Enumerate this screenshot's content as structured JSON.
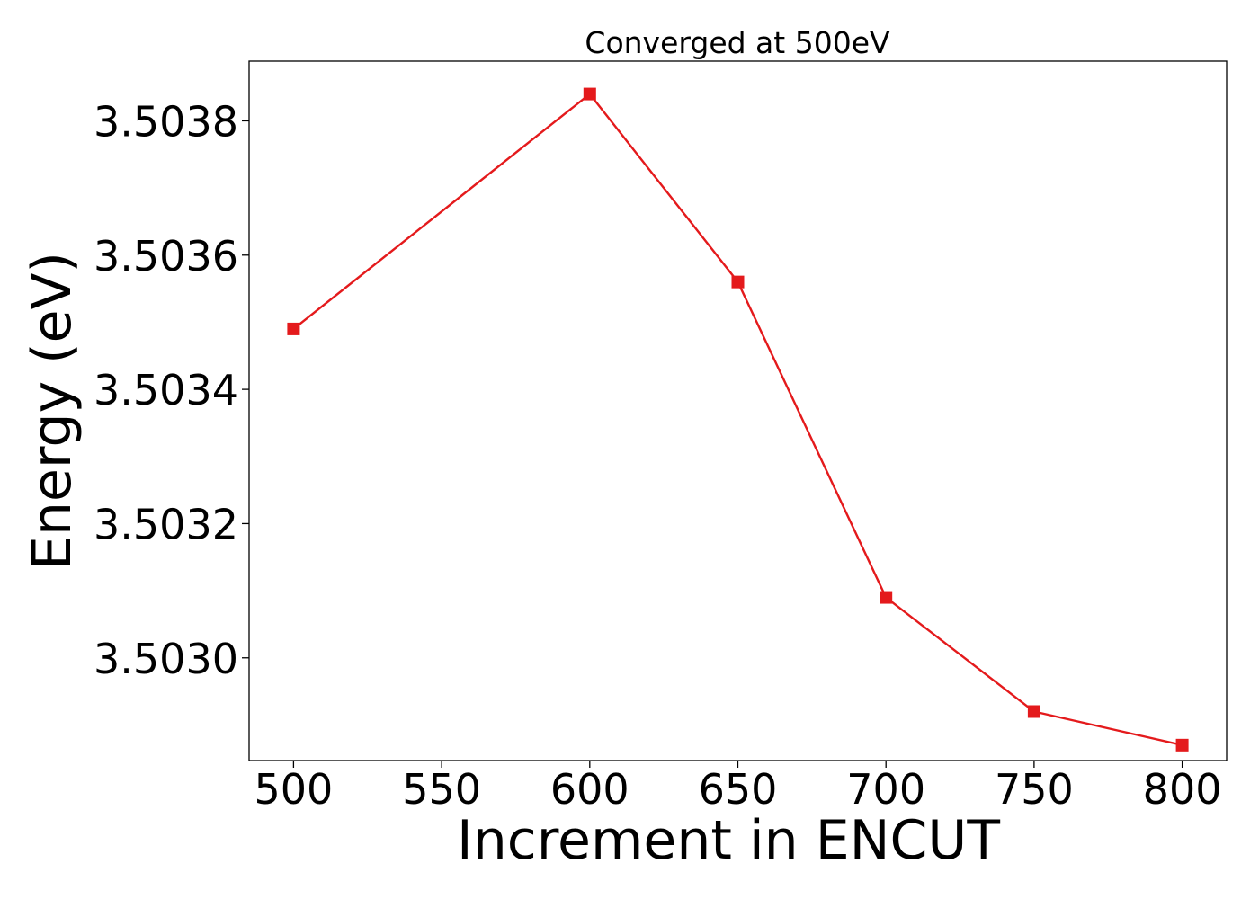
{
  "chart_data": {
    "type": "line",
    "title": "Converged at 500eV",
    "xlabel": "Increment in ENCUT",
    "ylabel": "Energy (eV)",
    "x": [
      500,
      600,
      650,
      700,
      750,
      800
    ],
    "series": [
      {
        "values": [
          3.50349,
          3.50384,
          3.50356,
          3.50309,
          3.50292,
          3.50287
        ],
        "color": "#e41a1c",
        "marker": "square"
      }
    ],
    "xticks": [
      500,
      550,
      600,
      650,
      700,
      750,
      800
    ],
    "xtick_labels": [
      "500",
      "550",
      "600",
      "650",
      "700",
      "750",
      "800"
    ],
    "yticks": [
      3.503,
      3.5032,
      3.5034,
      3.5036,
      3.5038
    ],
    "ytick_labels": [
      "3.5030",
      "3.5032",
      "3.5034",
      "3.5036",
      "3.5038"
    ],
    "xlim": [
      485,
      815
    ],
    "ylim": [
      3.502847,
      3.503889
    ],
    "grid": false,
    "legend": "none"
  }
}
